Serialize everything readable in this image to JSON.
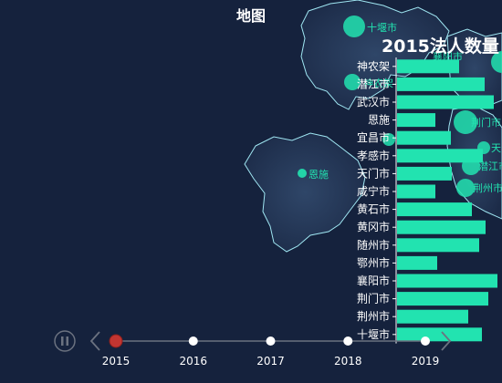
{
  "page_title": "地图",
  "chart_data": {
    "type": "bar",
    "orientation": "horizontal",
    "title": "2015法人数量",
    "categories": [
      "神农架",
      "潜江市",
      "武汉市",
      "恩施",
      "宜昌市",
      "孝感市",
      "天门市",
      "咸宁市",
      "黄石市",
      "黄冈市",
      "随州市",
      "鄂州市",
      "襄阳市",
      "荆门市",
      "荆州市",
      "十堰市"
    ],
    "values": [
      68,
      96,
      106,
      42,
      59,
      94,
      60,
      42,
      82,
      97,
      90,
      44,
      110,
      100,
      78,
      93
    ],
    "xlim": [
      0,
      120
    ],
    "bar_color": "#22e3b0",
    "axis_color": "#ffffff"
  },
  "map": {
    "fill_color": "#223350",
    "border_color": "#9fe6f2",
    "marker_color": "#22e3b0",
    "cities": [
      {
        "name": "十堰市",
        "size": "large"
      },
      {
        "name": "襄阳市",
        "size": "large"
      },
      {
        "name": "神农架",
        "size": "medium"
      },
      {
        "name": "恩施",
        "size": "small"
      },
      {
        "name": "宜昌市",
        "size": "small"
      },
      {
        "name": "荆门市",
        "size": "large"
      },
      {
        "name": "天门市",
        "size": "small"
      },
      {
        "name": "潜江市",
        "size": "medium"
      },
      {
        "name": "荆州市",
        "size": "medium"
      }
    ]
  },
  "timeline": {
    "years": [
      "2015",
      "2016",
      "2017",
      "2018",
      "2019"
    ],
    "current": "2015",
    "active_color": "#c23531",
    "play_icon": "pause-icon",
    "prev_icon": "chevron-left-icon",
    "next_icon": "chevron-right-icon"
  }
}
